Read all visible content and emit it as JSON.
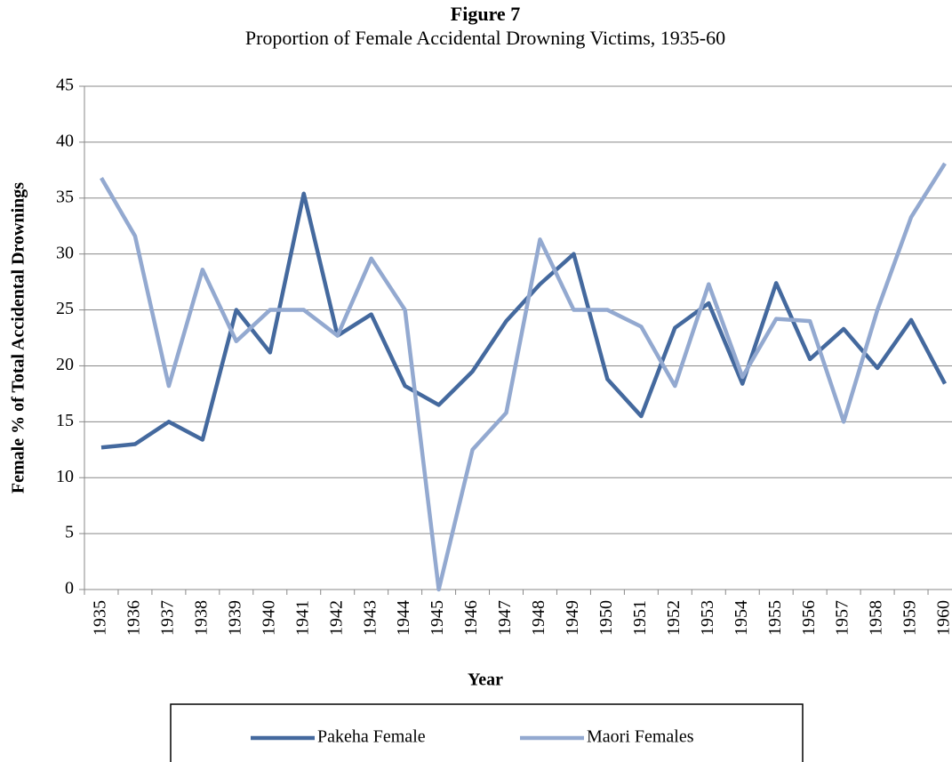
{
  "chart_data": {
    "type": "line",
    "title": "Figure 7",
    "subtitle": "Proportion of Female Accidental Drowning Victims, 1935-60",
    "x_label": "Year",
    "y_label": "Female % of Total Accidental Drownings",
    "categories": [
      "1935",
      "1936",
      "1937",
      "1938",
      "1939",
      "1940",
      "1941",
      "1942",
      "1943",
      "1944",
      "1945",
      "1946",
      "1947",
      "1948",
      "1949",
      "1950",
      "1951",
      "1952",
      "1953",
      "1954",
      "1955",
      "1956",
      "1957",
      "1958",
      "1959",
      "1960"
    ],
    "series": [
      {
        "name": "Pakeha Female",
        "color": "#44699e",
        "values": [
          12.7,
          13.0,
          15.0,
          13.4,
          25.0,
          21.2,
          35.4,
          22.7,
          24.6,
          18.2,
          16.5,
          19.5,
          24.0,
          27.3,
          30.0,
          18.8,
          15.5,
          23.4,
          25.6,
          18.4,
          27.4,
          20.6,
          23.3,
          19.8,
          24.1,
          18.4
        ]
      },
      {
        "name": "Maori Females",
        "color": "#93a9d0",
        "values": [
          36.8,
          31.6,
          18.2,
          28.6,
          22.2,
          25.0,
          25.0,
          22.7,
          29.6,
          25.0,
          0,
          12.5,
          15.8,
          31.3,
          25.0,
          25.0,
          23.5,
          18.2,
          27.3,
          19.0,
          24.2,
          24.0,
          15.0,
          25.0,
          33.3,
          38.1
        ]
      }
    ],
    "ylim": [
      0,
      45
    ],
    "yticks": [
      0,
      5,
      10,
      15,
      20,
      25,
      30,
      35,
      40,
      45
    ],
    "grid": true,
    "legend": "bottom"
  }
}
